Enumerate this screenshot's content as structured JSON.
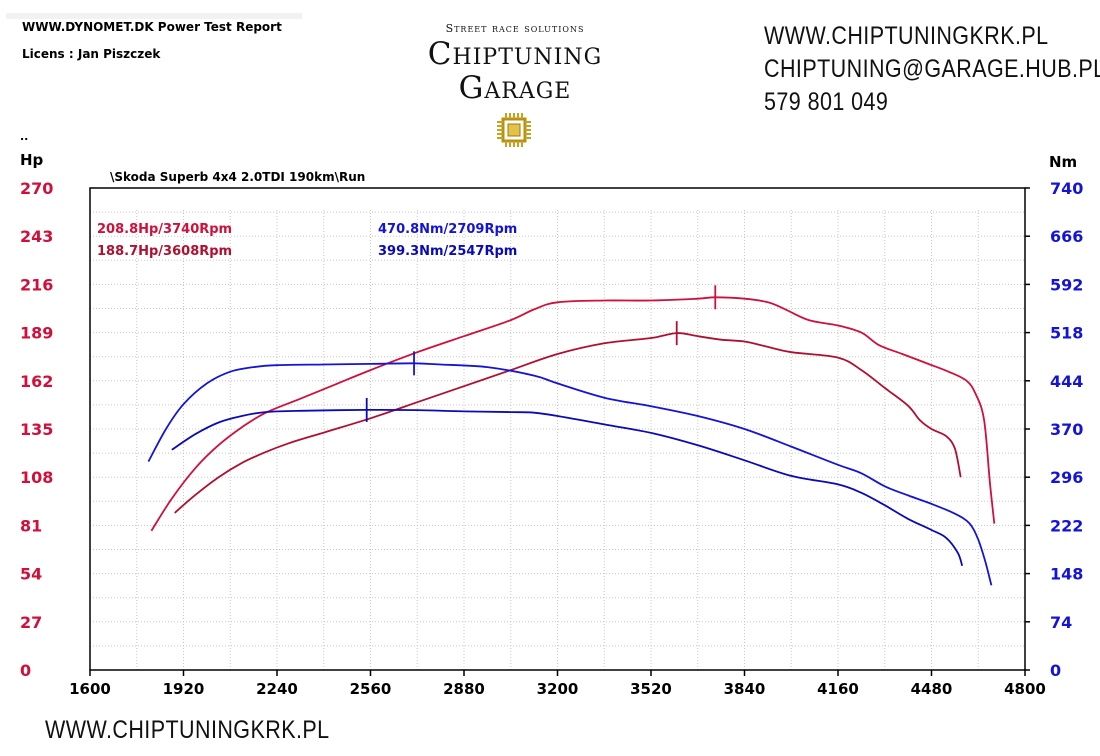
{
  "header": {
    "report_title": "WWW.DYNOMET.DK  Power Test Report",
    "licens": "Licens :  Jan Piszczek"
  },
  "logo": {
    "tagline": "Street race solutions",
    "line1": "Chiptuning",
    "line2": "Garage"
  },
  "contact": {
    "website": "WWW.CHIPTUNINGKRK.PL",
    "email": "CHIPTUNING@GARAGE.HUB.PL",
    "phone": "579 801 049"
  },
  "footer": {
    "website": "WWW.CHIPTUNINGKRK.PL"
  },
  "colors": {
    "power": "#d0103a",
    "power_stock": "#b01030",
    "torque": "#1414d8",
    "torque_stock": "#0a0ab8"
  },
  "chart_data": {
    "type": "line",
    "title": "\\Skoda Superb 4x4 2.0TDI 190km\\Run",
    "corner_mark": "..",
    "ylabel_left": "Hp",
    "ylabel_right": "Nm",
    "x_ticks": [
      1600,
      1920,
      2240,
      2560,
      2880,
      3200,
      3520,
      3840,
      4160,
      4480,
      4800
    ],
    "y_left_ticks": [
      0,
      27,
      54,
      81,
      108,
      135,
      162,
      189,
      216,
      243,
      270
    ],
    "y_right_ticks": [
      0,
      74,
      148,
      222,
      296,
      370,
      444,
      518,
      592,
      666,
      740
    ],
    "xlim": [
      1600,
      4800
    ],
    "ylim_left": [
      0,
      270
    ],
    "ylim_right": [
      0,
      740
    ],
    "annotations": {
      "power_tuned": "208.8Hp/3740Rpm",
      "power_stock": "188.7Hp/3608Rpm",
      "torque_tuned": "470.8Nm/2709Rpm",
      "torque_stock": "399.3Nm/2547Rpm"
    },
    "series": [
      {
        "name": "Power tuned",
        "axis": "left",
        "color": "#d0103a",
        "peak": [
          3740,
          208.8
        ],
        "points": [
          [
            1810,
            78
          ],
          [
            1880,
            96
          ],
          [
            1960,
            113
          ],
          [
            2040,
            126
          ],
          [
            2120,
            136
          ],
          [
            2200,
            144
          ],
          [
            2320,
            152
          ],
          [
            2440,
            160
          ],
          [
            2560,
            168
          ],
          [
            2720,
            178
          ],
          [
            2880,
            187
          ],
          [
            3040,
            196
          ],
          [
            3120,
            202
          ],
          [
            3200,
            206
          ],
          [
            3360,
            207
          ],
          [
            3520,
            207
          ],
          [
            3680,
            208
          ],
          [
            3740,
            208.8
          ],
          [
            3840,
            208
          ],
          [
            3920,
            206
          ],
          [
            3980,
            202
          ],
          [
            4060,
            196
          ],
          [
            4160,
            193
          ],
          [
            4240,
            189
          ],
          [
            4300,
            182
          ],
          [
            4380,
            177
          ],
          [
            4460,
            172
          ],
          [
            4540,
            167
          ],
          [
            4600,
            162
          ],
          [
            4630,
            155
          ],
          [
            4660,
            140
          ],
          [
            4680,
            105
          ],
          [
            4695,
            82
          ]
        ]
      },
      {
        "name": "Power stock",
        "axis": "left",
        "color": "#b01030",
        "peak": [
          3608,
          188.7
        ],
        "points": [
          [
            1890,
            88
          ],
          [
            1960,
            98
          ],
          [
            2040,
            108
          ],
          [
            2120,
            116
          ],
          [
            2200,
            122
          ],
          [
            2280,
            127
          ],
          [
            2400,
            133
          ],
          [
            2560,
            141
          ],
          [
            2720,
            150
          ],
          [
            2880,
            159
          ],
          [
            3040,
            168
          ],
          [
            3200,
            177
          ],
          [
            3360,
            183
          ],
          [
            3520,
            186
          ],
          [
            3608,
            188.7
          ],
          [
            3680,
            187
          ],
          [
            3760,
            185
          ],
          [
            3840,
            184
          ],
          [
            3920,
            181
          ],
          [
            4000,
            178
          ],
          [
            4160,
            175
          ],
          [
            4240,
            168
          ],
          [
            4320,
            158
          ],
          [
            4400,
            148
          ],
          [
            4440,
            140
          ],
          [
            4480,
            135
          ],
          [
            4530,
            131
          ],
          [
            4560,
            124
          ],
          [
            4580,
            108
          ]
        ]
      },
      {
        "name": "Torque tuned",
        "axis": "right",
        "color": "#1414d8",
        "peak": [
          2709,
          470.8
        ],
        "points": [
          [
            1800,
            320
          ],
          [
            1860,
            370
          ],
          [
            1920,
            408
          ],
          [
            2000,
            440
          ],
          [
            2080,
            458
          ],
          [
            2160,
            465
          ],
          [
            2240,
            468
          ],
          [
            2400,
            469
          ],
          [
            2560,
            470
          ],
          [
            2709,
            470.8
          ],
          [
            2800,
            469
          ],
          [
            2960,
            465
          ],
          [
            3120,
            452
          ],
          [
            3200,
            440
          ],
          [
            3360,
            418
          ],
          [
            3520,
            405
          ],
          [
            3680,
            390
          ],
          [
            3840,
            370
          ],
          [
            4000,
            343
          ],
          [
            4160,
            315
          ],
          [
            4240,
            302
          ],
          [
            4320,
            282
          ],
          [
            4400,
            268
          ],
          [
            4480,
            255
          ],
          [
            4560,
            240
          ],
          [
            4610,
            225
          ],
          [
            4640,
            200
          ],
          [
            4665,
            165
          ],
          [
            4685,
            130
          ]
        ]
      },
      {
        "name": "Torque stock",
        "axis": "right",
        "color": "#0a0ab8",
        "peak": [
          2547,
          399.3
        ],
        "points": [
          [
            1880,
            338
          ],
          [
            1960,
            362
          ],
          [
            2040,
            380
          ],
          [
            2120,
            390
          ],
          [
            2200,
            396
          ],
          [
            2320,
            398
          ],
          [
            2547,
            399.3
          ],
          [
            2720,
            399
          ],
          [
            2880,
            397
          ],
          [
            3040,
            396
          ],
          [
            3120,
            395
          ],
          [
            3200,
            390
          ],
          [
            3360,
            377
          ],
          [
            3520,
            364
          ],
          [
            3680,
            345
          ],
          [
            3840,
            322
          ],
          [
            4000,
            298
          ],
          [
            4160,
            285
          ],
          [
            4240,
            272
          ],
          [
            4320,
            253
          ],
          [
            4400,
            232
          ],
          [
            4480,
            215
          ],
          [
            4530,
            203
          ],
          [
            4570,
            180
          ],
          [
            4585,
            160
          ]
        ]
      }
    ]
  }
}
